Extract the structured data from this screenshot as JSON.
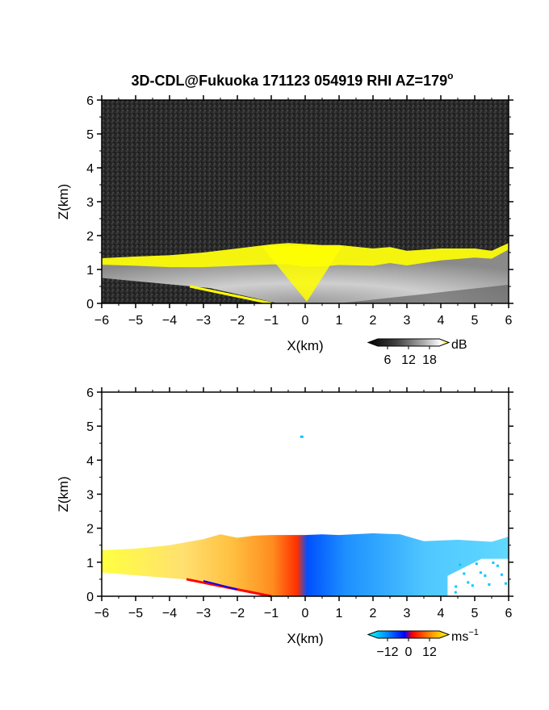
{
  "title": "3D-CDL@Fukuoka 171123 054919 RHI AZ=179",
  "title_superscript": "o",
  "chart_data": [
    {
      "type": "heatmap",
      "quantity": "backscatter",
      "xlabel": "X(km)",
      "ylabel": "Z(km)",
      "xlim": [
        -6,
        6
      ],
      "ylim": [
        0,
        6
      ],
      "xticks": [
        -6,
        -5,
        -4,
        -3,
        -2,
        -1,
        0,
        1,
        2,
        3,
        4,
        5,
        6
      ],
      "yticks": [
        0,
        1,
        2,
        3,
        4,
        5,
        6
      ],
      "xtick_labels": [
        "−6",
        "−5",
        "−4",
        "−3",
        "−2",
        "−1",
        "0",
        "1",
        "2",
        "3",
        "4",
        "5",
        "6"
      ],
      "ytick_labels": [
        "0",
        "1",
        "2",
        "3",
        "4",
        "5",
        "6"
      ],
      "background_color": "#2b2b2b",
      "highlight_color": "#ffff00",
      "echo_top_km": [
        [
          -6.0,
          1.33
        ],
        [
          -5.0,
          1.38
        ],
        [
          -4.0,
          1.42
        ],
        [
          -3.0,
          1.5
        ],
        [
          -2.0,
          1.62
        ],
        [
          -1.0,
          1.74
        ],
        [
          -0.5,
          1.78
        ],
        [
          0.0,
          1.75
        ],
        [
          0.5,
          1.72
        ],
        [
          1.0,
          1.72
        ],
        [
          2.0,
          1.62
        ],
        [
          2.5,
          1.66
        ],
        [
          3.0,
          1.55
        ],
        [
          4.0,
          1.62
        ],
        [
          5.0,
          1.62
        ],
        [
          5.5,
          1.55
        ],
        [
          6.0,
          1.78
        ]
      ],
      "colorbar": {
        "unit": "dB",
        "ticks": [
          6,
          12,
          18
        ],
        "tick_labels": [
          "6",
          "12",
          "18"
        ],
        "colors": [
          "#000000",
          "#404040",
          "#808080",
          "#c0c0c0",
          "#ffffff",
          "#ffff00"
        ]
      }
    },
    {
      "type": "heatmap",
      "quantity": "radial velocity",
      "xlabel": "X(km)",
      "ylabel": "Z(km)",
      "xlim": [
        -6,
        6
      ],
      "ylim": [
        0,
        6
      ],
      "xticks": [
        -6,
        -5,
        -4,
        -3,
        -2,
        -1,
        0,
        1,
        2,
        3,
        4,
        5,
        6
      ],
      "yticks": [
        0,
        1,
        2,
        3,
        4,
        5,
        6
      ],
      "xtick_labels": [
        "−6",
        "−5",
        "−4",
        "−3",
        "−2",
        "−1",
        "0",
        "1",
        "2",
        "3",
        "4",
        "5",
        "6"
      ],
      "ytick_labels": [
        "0",
        "1",
        "2",
        "3",
        "4",
        "5",
        "6"
      ],
      "echo_top_km": [
        [
          -6.0,
          1.35
        ],
        [
          -5.0,
          1.4
        ],
        [
          -4.0,
          1.5
        ],
        [
          -3.0,
          1.68
        ],
        [
          -2.5,
          1.82
        ],
        [
          -2.0,
          1.72
        ],
        [
          -1.5,
          1.78
        ],
        [
          -1.0,
          1.8
        ],
        [
          0.0,
          1.8
        ],
        [
          0.5,
          1.82
        ],
        [
          1.0,
          1.8
        ],
        [
          2.0,
          1.85
        ],
        [
          2.8,
          1.82
        ],
        [
          3.5,
          1.62
        ],
        [
          4.5,
          1.66
        ],
        [
          5.5,
          1.6
        ],
        [
          6.0,
          1.75
        ]
      ],
      "isolated_point": [
        -0.1,
        4.7
      ],
      "colorbar": {
        "unit": "ms",
        "unit_superscript": "−1",
        "ticks": [
          -12,
          0,
          12
        ],
        "tick_labels": [
          "−12",
          "0",
          "12"
        ],
        "colors": [
          "#00ffff",
          "#00c8ff",
          "#0064ff",
          "#0000ff",
          "#ff0000",
          "#ff8000",
          "#ffc000",
          "#ffff00"
        ]
      }
    }
  ]
}
